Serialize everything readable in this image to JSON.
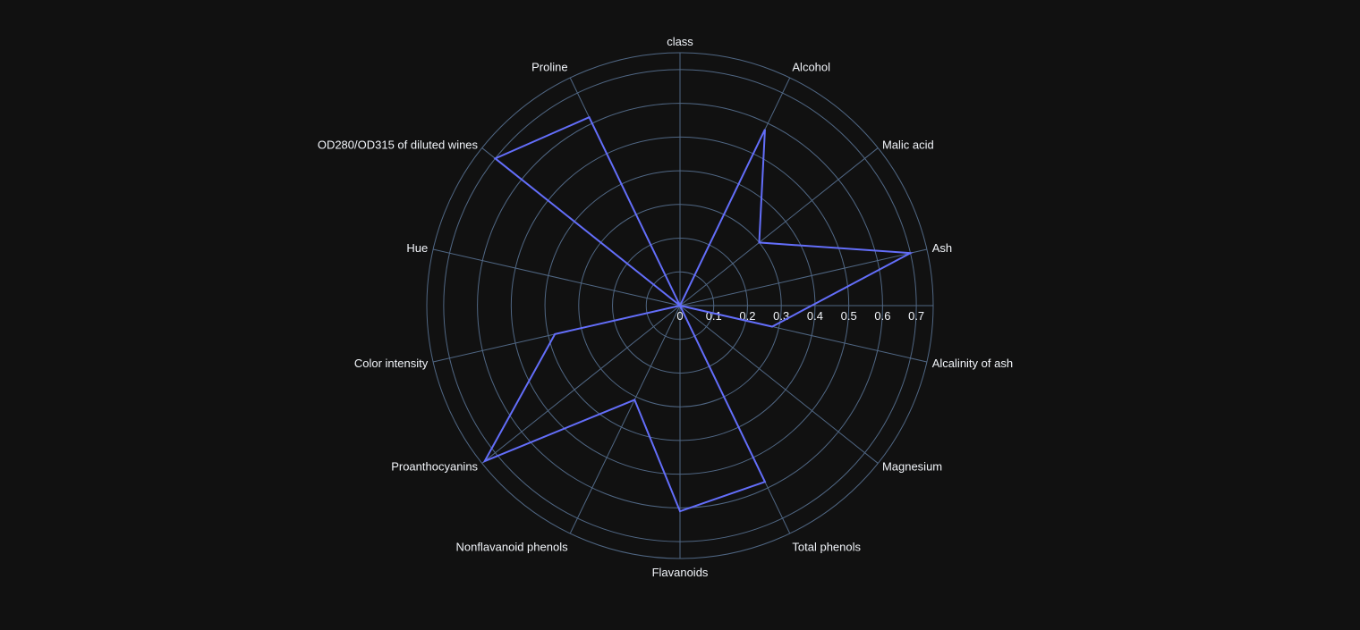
{
  "chart_data": {
    "type": "radar",
    "categories": [
      "class",
      "Alcohol",
      "Malic acid",
      "Ash",
      "Alcalinity of ash",
      "Magnesium",
      "Total phenols",
      "Flavanoids",
      "Nonflavanoid phenols",
      "Proanthocyanins",
      "Color intensity",
      "Hue",
      "OD280/OD315 of diluted wines",
      "Proline"
    ],
    "series": [
      {
        "values": [
          0.0,
          0.58,
          0.3,
          0.7,
          0.28,
          0.0,
          0.58,
          0.61,
          0.31,
          0.74,
          0.38,
          0.0,
          0.7,
          0.62
        ]
      }
    ],
    "radial_ticks": [
      "0",
      "0.1",
      "0.2",
      "0.3",
      "0.4",
      "0.5",
      "0.6",
      "0.7"
    ],
    "radial_range": [
      0,
      0.75
    ],
    "gridlines": true,
    "colors": {
      "line": "#636efa",
      "grid": "#506784",
      "text": "#f2f5fa",
      "background": "#111111"
    }
  }
}
